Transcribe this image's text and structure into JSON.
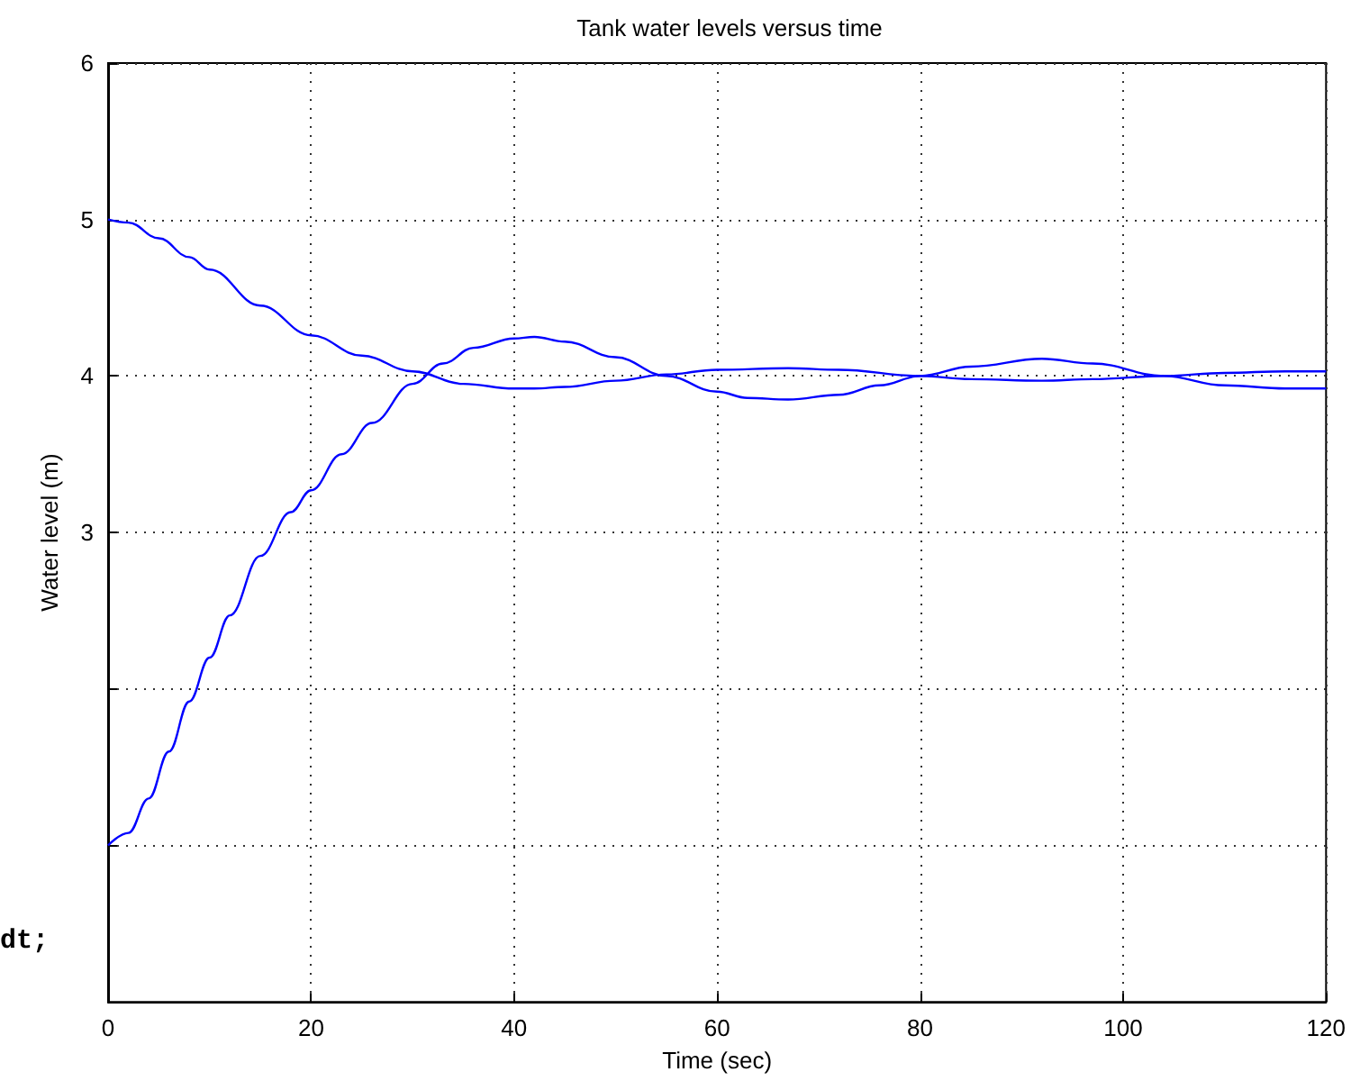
{
  "chart_data": {
    "type": "line",
    "title": "Tank water levels versus time",
    "xlabel": "Time (sec)",
    "ylabel": "Water level (m)",
    "annotations": [
      "dt;"
    ],
    "xlim": [
      0,
      120
    ],
    "xticks": [
      0,
      20,
      40,
      60,
      80,
      100,
      120
    ],
    "ylim": [
      0,
      6
    ],
    "yticks": [
      {
        "value": 0,
        "label": null
      },
      {
        "value": 1,
        "label": null
      },
      {
        "value": 2,
        "label": null
      },
      3,
      4,
      5,
      6
    ],
    "grid": true,
    "marker": "none",
    "line_style": "solid",
    "series": [
      {
        "color": "#0000ff",
        "x": [
          0,
          2,
          5,
          8,
          10,
          15,
          20,
          25,
          30,
          35,
          40,
          42,
          45,
          50,
          55,
          60,
          67,
          72,
          80,
          85,
          92,
          97,
          104,
          110,
          116,
          120
        ],
        "values": [
          5.0,
          4.98,
          4.88,
          4.76,
          4.68,
          4.45,
          4.26,
          4.13,
          4.03,
          3.95,
          3.92,
          3.92,
          3.93,
          3.97,
          4.01,
          4.04,
          4.05,
          4.04,
          4.0,
          3.98,
          3.97,
          3.98,
          4.0,
          4.02,
          4.03,
          4.03
        ]
      },
      {
        "color": "#0000ff",
        "x": [
          0,
          2,
          4,
          6,
          8,
          10,
          12,
          15,
          18,
          20,
          23,
          26,
          30,
          33,
          36,
          40,
          42,
          45,
          50,
          55,
          60,
          63,
          67,
          72,
          76,
          80,
          85,
          92,
          97,
          104,
          110,
          116,
          120
        ],
        "values": [
          1.0,
          1.08,
          1.3,
          1.6,
          1.92,
          2.2,
          2.47,
          2.85,
          3.13,
          3.27,
          3.5,
          3.7,
          3.95,
          4.08,
          4.18,
          4.24,
          4.25,
          4.22,
          4.12,
          4.0,
          3.9,
          3.86,
          3.85,
          3.88,
          3.94,
          4.0,
          4.06,
          4.11,
          4.08,
          4.0,
          3.94,
          3.92,
          3.92
        ]
      }
    ]
  }
}
